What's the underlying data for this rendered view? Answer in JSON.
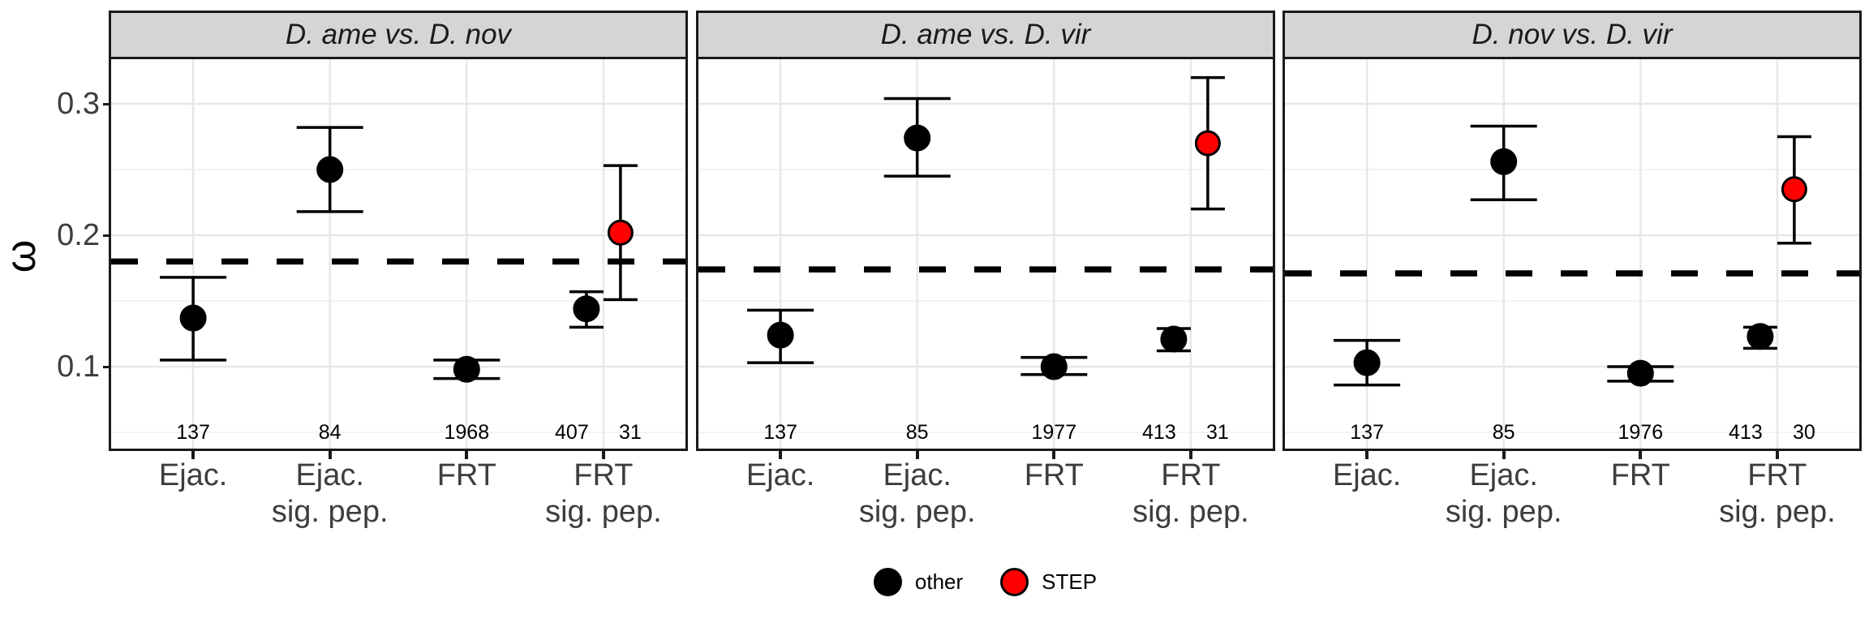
{
  "y_axis": {
    "title": "ω",
    "tick_labels": [
      "0.1",
      "0.2",
      "0.3"
    ],
    "tick_values": [
      0.1,
      0.2,
      0.3
    ],
    "minor_gridlines": [
      0.05,
      0.15,
      0.25
    ],
    "range": [
      0.038,
      0.334
    ]
  },
  "x_axis": {
    "category_labels": [
      [
        "Ejac."
      ],
      [
        "Ejac.",
        "sig. pep."
      ],
      [
        "FRT"
      ],
      [
        "FRT",
        "sig. pep."
      ]
    ]
  },
  "legend": {
    "position": "bottom",
    "items": [
      {
        "label": "other",
        "color": "#000000"
      },
      {
        "label": "STEP",
        "color": "#ff0000"
      }
    ]
  },
  "colors": {
    "other": "#000000",
    "step": "#ff0000",
    "strip_fill": "#d5d5d5",
    "panel_border": "#1a1a1a",
    "axis_text": "#3d3d3d"
  },
  "chart_data": {
    "type": "scatter",
    "subtype": "pointrange-with-errorbars",
    "ylabel": "ω",
    "ylim": [
      0.038,
      0.334
    ],
    "grid": true,
    "legend_position": "bottom",
    "categories": [
      "Ejac.",
      "Ejac. sig. pep.",
      "FRT",
      "FRT sig. pep."
    ],
    "groups": [
      "other",
      "STEP"
    ],
    "panels": [
      {
        "title": "D. ame vs. D. nov",
        "dashed_line_y": 0.18,
        "points": [
          {
            "category": "Ejac.",
            "group": "other",
            "n": 137,
            "y": 0.137,
            "ymin": 0.105,
            "ymax": 0.168
          },
          {
            "category": "Ejac. sig. pep.",
            "group": "other",
            "n": 84,
            "y": 0.25,
            "ymin": 0.218,
            "ymax": 0.282
          },
          {
            "category": "FRT",
            "group": "other",
            "n": 1968,
            "y": 0.098,
            "ymin": 0.091,
            "ymax": 0.105
          },
          {
            "category": "FRT sig. pep.",
            "group": "other",
            "n": 407,
            "y": 0.144,
            "ymin": 0.13,
            "ymax": 0.157
          },
          {
            "category": "FRT sig. pep.",
            "group": "STEP",
            "n": 31,
            "y": 0.202,
            "ymin": 0.151,
            "ymax": 0.253
          }
        ]
      },
      {
        "title": "D. ame vs. D. vir",
        "dashed_line_y": 0.174,
        "points": [
          {
            "category": "Ejac.",
            "group": "other",
            "n": 137,
            "y": 0.124,
            "ymin": 0.103,
            "ymax": 0.143
          },
          {
            "category": "Ejac. sig. pep.",
            "group": "other",
            "n": 85,
            "y": 0.274,
            "ymin": 0.245,
            "ymax": 0.304
          },
          {
            "category": "FRT",
            "group": "other",
            "n": 1977,
            "y": 0.1,
            "ymin": 0.094,
            "ymax": 0.107
          },
          {
            "category": "FRT sig. pep.",
            "group": "other",
            "n": 413,
            "y": 0.121,
            "ymin": 0.112,
            "ymax": 0.129
          },
          {
            "category": "FRT sig. pep.",
            "group": "STEP",
            "n": 31,
            "y": 0.27,
            "ymin": 0.22,
            "ymax": 0.32
          }
        ]
      },
      {
        "title": "D. nov vs. D. vir",
        "dashed_line_y": 0.171,
        "points": [
          {
            "category": "Ejac.",
            "group": "other",
            "n": 137,
            "y": 0.103,
            "ymin": 0.086,
            "ymax": 0.12
          },
          {
            "category": "Ejac. sig. pep.",
            "group": "other",
            "n": 85,
            "y": 0.256,
            "ymin": 0.227,
            "ymax": 0.283
          },
          {
            "category": "FRT",
            "group": "other",
            "n": 1976,
            "y": 0.095,
            "ymin": 0.089,
            "ymax": 0.1
          },
          {
            "category": "FRT sig. pep.",
            "group": "other",
            "n": 413,
            "y": 0.123,
            "ymin": 0.114,
            "ymax": 0.13
          },
          {
            "category": "FRT sig. pep.",
            "group": "STEP",
            "n": 30,
            "y": 0.235,
            "ymin": 0.194,
            "ymax": 0.275
          }
        ]
      }
    ]
  }
}
